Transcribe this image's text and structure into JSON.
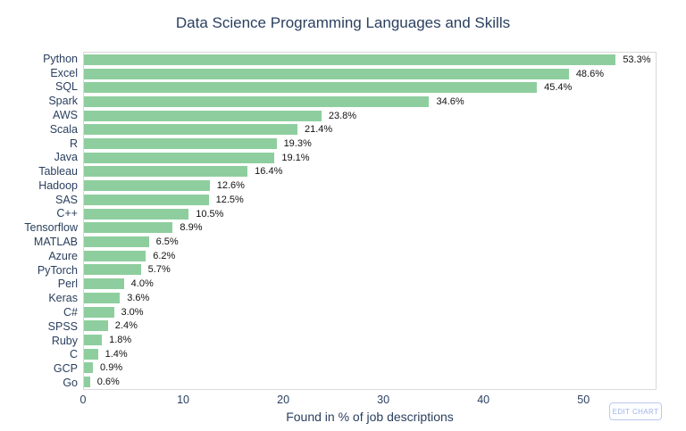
{
  "chart_data": {
    "type": "bar",
    "orientation": "horizontal",
    "title": "Data Science Programming Languages and Skills",
    "xlabel": "Found in % of job descriptions",
    "categories": [
      "Python",
      "Excel",
      "SQL",
      "Spark",
      "AWS",
      "Scala",
      "R",
      "Java",
      "Tableau",
      "Hadoop",
      "SAS",
      "C++",
      "Tensorflow",
      "MATLAB",
      "Azure",
      "PyTorch",
      "Perl",
      "Keras",
      "C#",
      "SPSS",
      "Ruby",
      "C",
      "GCP",
      "Go"
    ],
    "values": [
      53.3,
      48.6,
      45.4,
      34.6,
      23.8,
      21.4,
      19.3,
      19.1,
      16.4,
      12.6,
      12.5,
      10.5,
      8.9,
      6.5,
      6.2,
      5.7,
      4.0,
      3.6,
      3.0,
      2.4,
      1.8,
      1.4,
      0.9,
      0.6
    ],
    "value_labels": [
      "53.3%",
      "48.6%",
      "45.4%",
      "34.6%",
      "23.8%",
      "21.4%",
      "19.3%",
      "19.1%",
      "16.4%",
      "12.6%",
      "12.5%",
      "10.5%",
      "8.9%",
      "6.5%",
      "6.2%",
      "5.7%",
      "4.0%",
      "3.6%",
      "3.0%",
      "2.4%",
      "1.8%",
      "1.4%",
      "0.9%",
      "0.6%"
    ],
    "xticks": [
      0,
      10,
      20,
      30,
      40,
      50
    ],
    "xlim": [
      0,
      57.3
    ],
    "bar_color": "#8ECE9E",
    "grid": false,
    "legend": "none"
  },
  "edit_button": {
    "label": "EDIT CHART"
  },
  "colors": {
    "axis_text": "#2a3f5f",
    "value_text": "#111111",
    "plot_border": "#d9d9d9",
    "button_border": "#bcc9f0",
    "button_text": "#9fb3e8"
  }
}
